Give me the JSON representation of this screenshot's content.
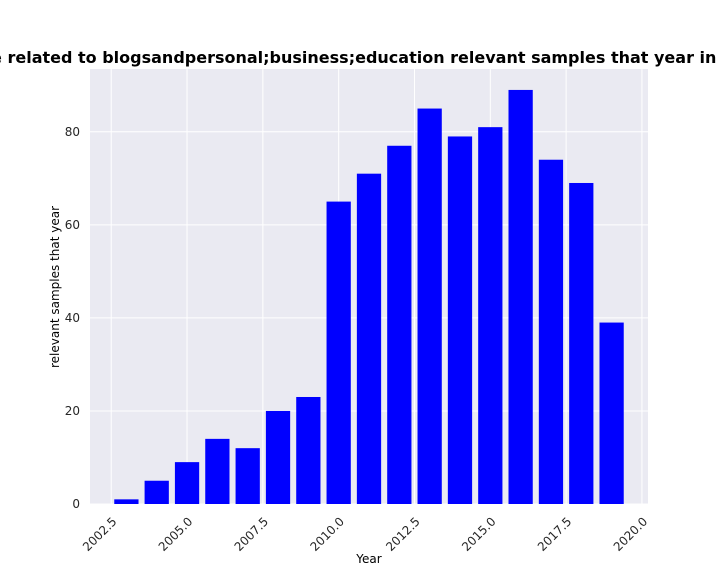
{
  "chart_data": {
    "type": "bar",
    "title": "ries are related to blogsandpersonal;business;education relevant samples that year in privacy p",
    "xlabel": "Year",
    "ylabel": "relevant samples that year",
    "x": [
      2003,
      2004,
      2005,
      2006,
      2007,
      2008,
      2009,
      2010,
      2011,
      2012,
      2013,
      2014,
      2015,
      2016,
      2017,
      2018,
      2019
    ],
    "values": [
      1,
      5,
      9,
      14,
      12,
      20,
      23,
      65,
      71,
      77,
      85,
      79,
      81,
      89,
      74,
      69,
      39
    ],
    "xlim": [
      2001.8,
      2020.2
    ],
    "ylim": [
      0,
      93.5
    ],
    "xticks": [
      2002.5,
      2005.0,
      2007.5,
      2010.0,
      2012.5,
      2015.0,
      2017.5,
      2020.0
    ],
    "xtick_labels": [
      "2002.5",
      "2005.0",
      "2007.5",
      "2010.0",
      "2012.5",
      "2015.0",
      "2017.5",
      "2020.0"
    ],
    "yticks": [
      0,
      20,
      40,
      60,
      80
    ],
    "ytick_labels": [
      "0",
      "20",
      "40",
      "60",
      "80"
    ],
    "bar_color": "#0000ff",
    "background_color": "#eaeaf2",
    "grid_color": "#ffffff",
    "grid": true
  }
}
